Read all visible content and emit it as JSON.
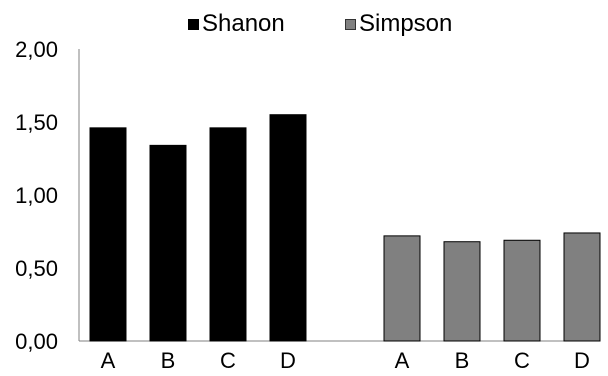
{
  "chart_data": {
    "type": "bar",
    "title": "",
    "xlabel": "",
    "ylabel": "",
    "ylim": [
      0,
      2
    ],
    "yticks": [
      "0,00",
      "0,50",
      "1,00",
      "1,50",
      "2,00"
    ],
    "ytick_values": [
      0,
      0.5,
      1,
      1.5,
      2
    ],
    "legend_position": "top",
    "grid": false,
    "groups": [
      {
        "name": "Shanon",
        "color": "#000000",
        "categories": [
          "A",
          "B",
          "C",
          "D"
        ],
        "values": [
          1.46,
          1.34,
          1.46,
          1.55
        ]
      },
      {
        "name": "Simpson",
        "color": "#808080",
        "categories": [
          "A",
          "B",
          "C",
          "D"
        ],
        "values": [
          0.72,
          0.68,
          0.69,
          0.74
        ]
      }
    ]
  }
}
